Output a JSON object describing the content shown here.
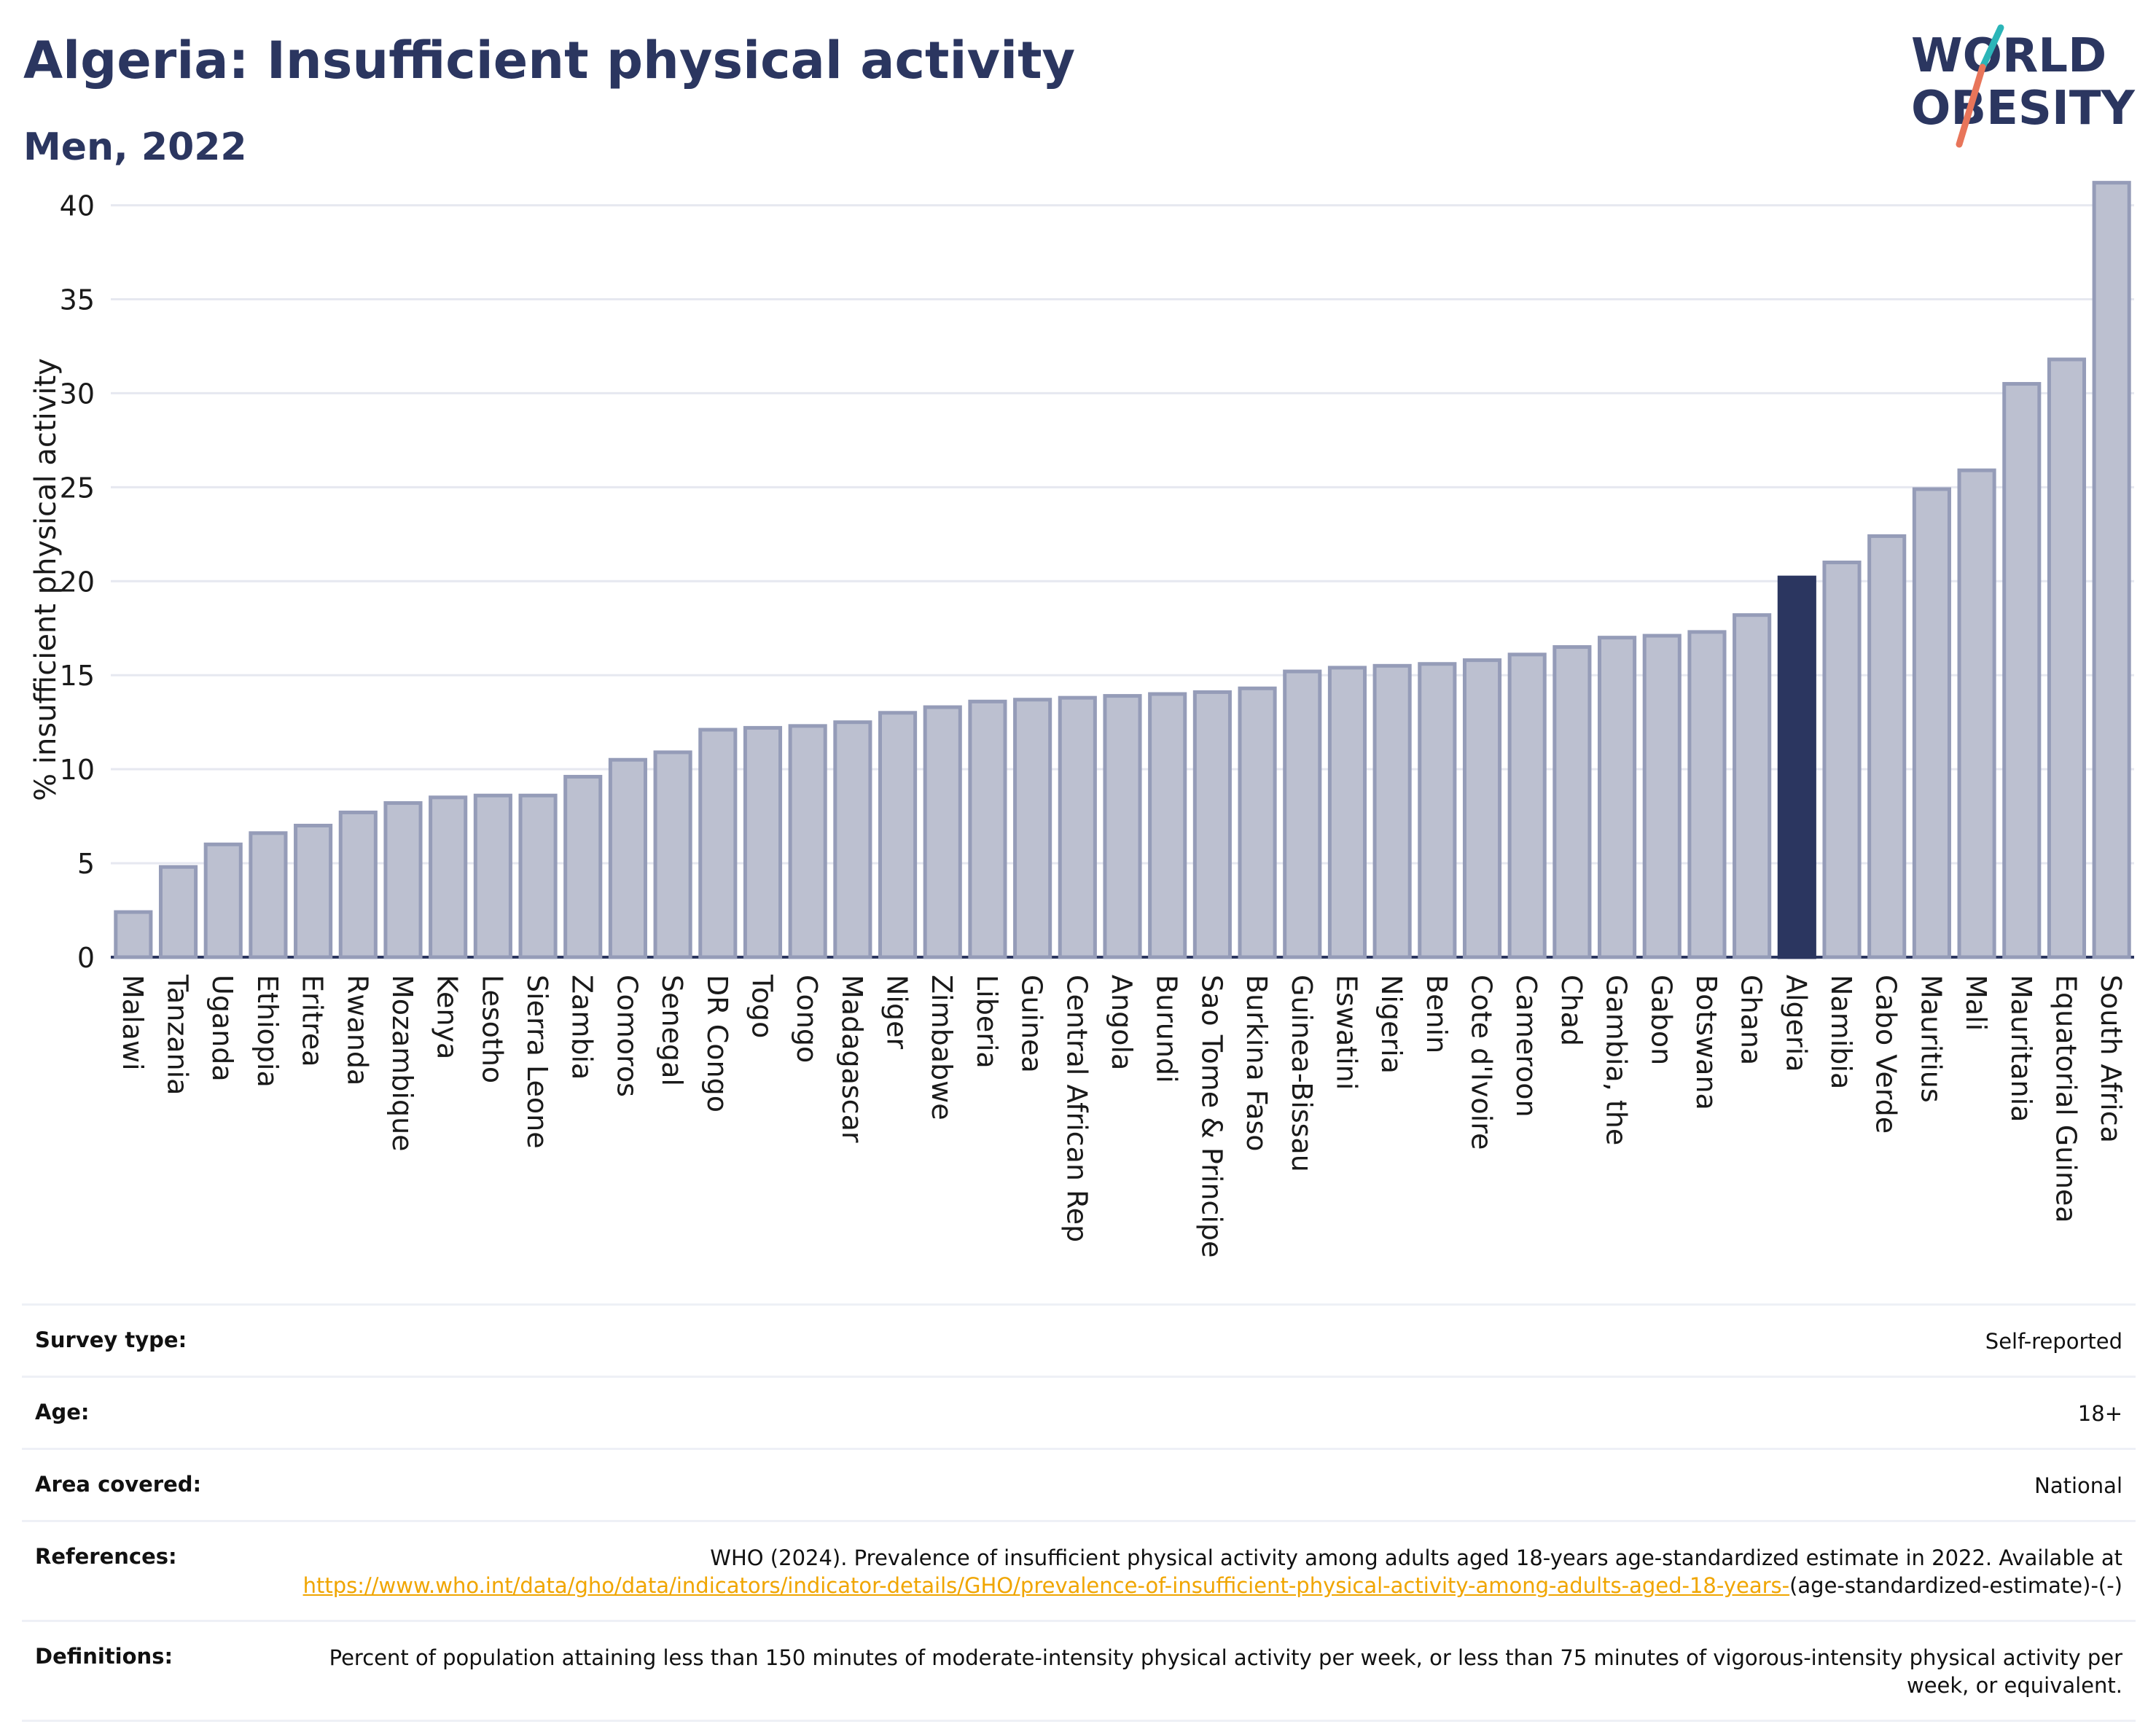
{
  "header": {
    "title": "Algeria: Insufficient physical activity",
    "subtitle": "Men, 2022"
  },
  "logo": {
    "line1": "WORLD",
    "line2": "OBESITY",
    "colors": {
      "text": "#2b3660",
      "slash_orange": "#e8755a",
      "slash_teal": "#2bb5b8"
    }
  },
  "colors": {
    "bar_default": "#bcc0d0",
    "bar_stroke": "#959cb8",
    "bar_highlight": "#2b3660",
    "grid": "#e6e8f0",
    "link": "#f0a500"
  },
  "chart_data": {
    "type": "bar",
    "title": "Algeria: Insufficient physical activity",
    "subtitle": "Men, 2022",
    "ylabel": "% insufficient physical activity",
    "xlabel": "",
    "ylim": [
      0,
      42
    ],
    "yticks": [
      0,
      5,
      10,
      15,
      20,
      25,
      30,
      35,
      40
    ],
    "grid": true,
    "highlight": "Algeria",
    "categories": [
      "Malawi",
      "Tanzania",
      "Uganda",
      "Ethiopia",
      "Eritrea",
      "Rwanda",
      "Mozambique",
      "Kenya",
      "Lesotho",
      "Sierra Leone",
      "Zambia",
      "Comoros",
      "Senegal",
      "DR Congo",
      "Togo",
      "Congo",
      "Madagascar",
      "Niger",
      "Zimbabwe",
      "Liberia",
      "Guinea",
      "Central African Rep",
      "Angola",
      "Burundi",
      "Sao Tome & Principe",
      "Burkina Faso",
      "Guinea-Bissau",
      "Eswatini",
      "Nigeria",
      "Benin",
      "Cote d'Ivoire",
      "Cameroon",
      "Chad",
      "Gambia, the",
      "Gabon",
      "Botswana",
      "Ghana",
      "Algeria",
      "Namibia",
      "Cabo Verde",
      "Mauritius",
      "Mali",
      "Mauritania",
      "Equatorial Guinea",
      "South Africa"
    ],
    "values": [
      2.4,
      4.8,
      6.0,
      6.6,
      7.0,
      7.7,
      8.2,
      8.5,
      8.6,
      8.6,
      9.6,
      10.5,
      10.9,
      12.1,
      12.2,
      12.3,
      12.5,
      13.0,
      13.3,
      13.6,
      13.7,
      13.8,
      13.9,
      14.0,
      14.1,
      14.3,
      15.2,
      15.4,
      15.5,
      15.6,
      15.8,
      16.1,
      16.5,
      17.0,
      17.1,
      17.3,
      18.2,
      20.2,
      21.0,
      22.4,
      24.9,
      25.9,
      30.5,
      31.8,
      41.2
    ]
  },
  "info": {
    "survey_type": {
      "label": "Survey type:",
      "value": "Self-reported"
    },
    "age": {
      "label": "Age:",
      "value": "18+"
    },
    "area": {
      "label": "Area covered:",
      "value": "National"
    },
    "references": {
      "label": "References:",
      "text_before": "WHO (2024). Prevalence of insufficient physical activity among adults aged 18-years age-standardized estimate in 2022. Available at",
      "link_text": "https://www.who.int/data/gho/data/indicators/indicator-details/GHO/prevalence-of-insufficient-physical-activity-among-adults-aged-18-years-",
      "text_after": "(age-standardized-estimate)-(-)"
    },
    "definitions": {
      "label": "Definitions:",
      "value": "Percent of population attaining less than 150 minutes of moderate-intensity physical activity per week, or less than 75 minutes of vigorous-intensity physical activity per week, or equivalent."
    }
  }
}
